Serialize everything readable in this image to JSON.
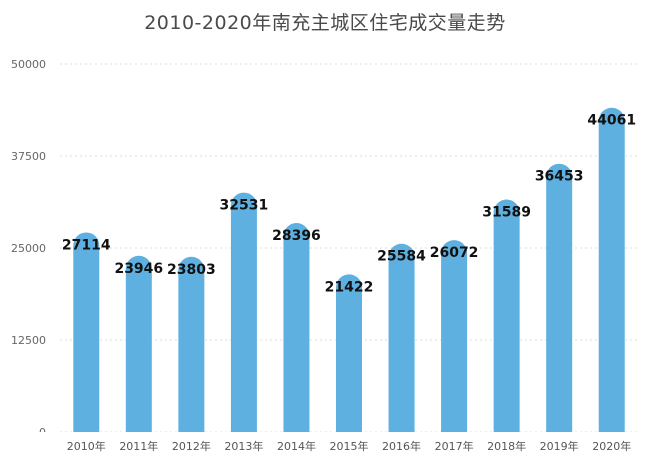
{
  "chart_data": {
    "type": "bar",
    "title": "2010-2020年南充主城区住宅成交量走势",
    "categories": [
      "2010年",
      "2011年",
      "2012年",
      "2013年",
      "2014年",
      "2015年",
      "2016年",
      "2017年",
      "2018年",
      "2019年",
      "2020年"
    ],
    "values": [
      27114,
      23946,
      23803,
      32531,
      28396,
      21422,
      25584,
      26072,
      31589,
      36453,
      44061
    ],
    "y_ticks": [
      "0",
      "12500",
      "25000",
      "37500",
      "50000"
    ],
    "ylim": [
      0,
      50000
    ],
    "xlabel": "",
    "ylabel": "",
    "grid": true,
    "legend": "none",
    "bar_color": "#5eb0e0"
  }
}
